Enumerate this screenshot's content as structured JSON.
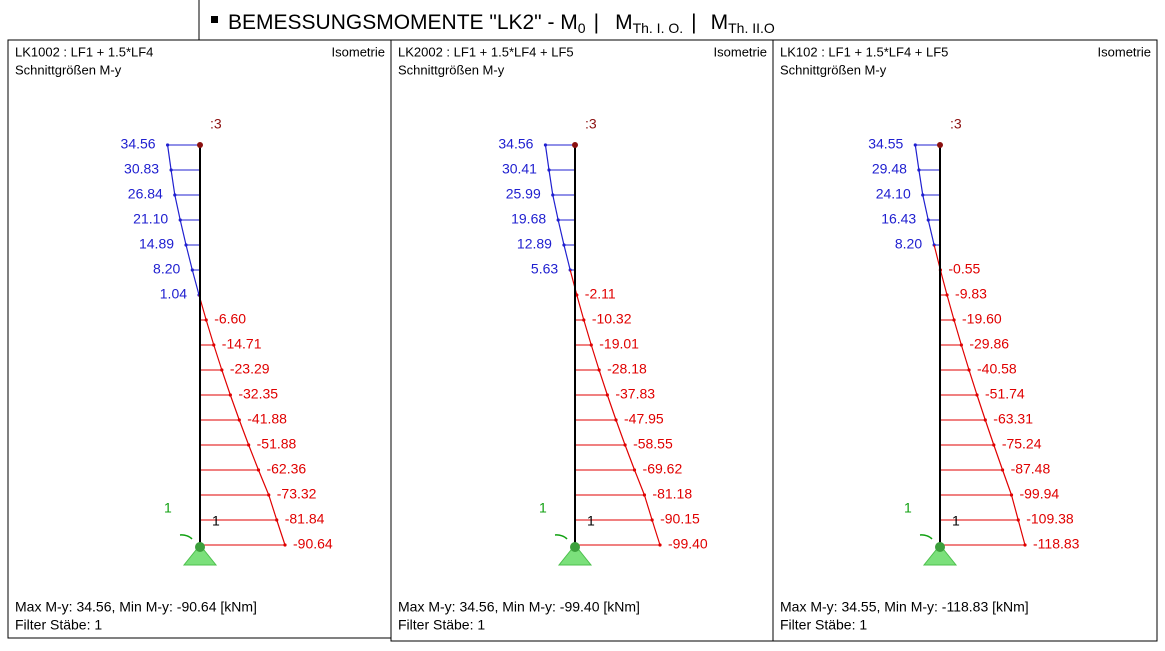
{
  "title": {
    "main": "BEMESSUNGSMOMENTE \"LK2\" - M",
    "sub0": "0",
    "sep1": "|",
    "m1": "M",
    "sub1": "Th. I. O.",
    "sep2": "|",
    "m2": "M",
    "sub2": "Th. II.O"
  },
  "panels": [
    {
      "combo": "LK1002 : LF1 + 1.5*LF4",
      "view": "Isometrie",
      "subtitle": "Schnittgrößen M-y",
      "node_label": ":3",
      "member_label": "1",
      "member_label_2": "1",
      "values": [
        34.56,
        30.83,
        26.84,
        21.1,
        14.89,
        8.2,
        1.04,
        -6.6,
        -14.71,
        -23.29,
        -32.35,
        -41.88,
        -51.88,
        -62.36,
        -73.32,
        -81.84,
        -90.64
      ],
      "value_labels": [
        "34.56",
        "30.83",
        "26.84",
        "21.10",
        "14.89",
        "8.20",
        "1.04",
        "-6.60",
        "-14.71",
        "-23.29",
        "-32.35",
        "-41.88",
        "-51.88",
        "-62.36",
        "-73.32",
        "-81.84",
        "-90.64"
      ],
      "footer": "Max M-y: 34.56, Min M-y: -90.64 [kNm]",
      "filter": "Filter Stäbe: 1"
    },
    {
      "combo": "LK2002 : LF1 + 1.5*LF4 + LF5",
      "view": "Isometrie",
      "subtitle": "Schnittgrößen M-y",
      "node_label": ":3",
      "member_label": "1",
      "member_label_2": "1",
      "values": [
        34.56,
        30.41,
        25.99,
        19.68,
        12.89,
        5.63,
        -2.11,
        -10.32,
        -19.01,
        -28.18,
        -37.83,
        -47.95,
        -58.55,
        -69.62,
        -81.18,
        -90.15,
        -99.4
      ],
      "value_labels": [
        "34.56",
        "30.41",
        "25.99",
        "19.68",
        "12.89",
        "5.63",
        "-2.11",
        "-10.32",
        "-19.01",
        "-28.18",
        "-37.83",
        "-47.95",
        "-58.55",
        "-69.62",
        "-81.18",
        "-90.15",
        "-99.40"
      ],
      "footer": "Max M-y: 34.56, Min M-y: -99.40 [kNm]",
      "filter": "Filter Stäbe: 1"
    },
    {
      "combo": "LK102 : LF1 + 1.5*LF4 + LF5",
      "view": "Isometrie",
      "subtitle": "Schnittgrößen M-y",
      "node_label": ":3",
      "member_label": "1",
      "member_label_2": "1",
      "values": [
        34.55,
        29.48,
        24.1,
        16.43,
        8.2,
        -0.55,
        -9.83,
        -19.6,
        -29.86,
        -40.58,
        -51.74,
        -63.31,
        -75.24,
        -87.48,
        -99.94,
        -109.38,
        -118.83
      ],
      "value_labels": [
        "34.55",
        "29.48",
        "24.10",
        "16.43",
        "8.20",
        "-0.55",
        "-9.83",
        "-19.60",
        "-29.86",
        "-40.58",
        "-51.74",
        "-63.31",
        "-75.24",
        "-87.48",
        "-99.94",
        "-109.38",
        "-118.83"
      ],
      "footer": "Max M-y: 34.55, Min M-y: -118.83 [kNm]",
      "filter": "Filter Stäbe: 1"
    }
  ]
}
